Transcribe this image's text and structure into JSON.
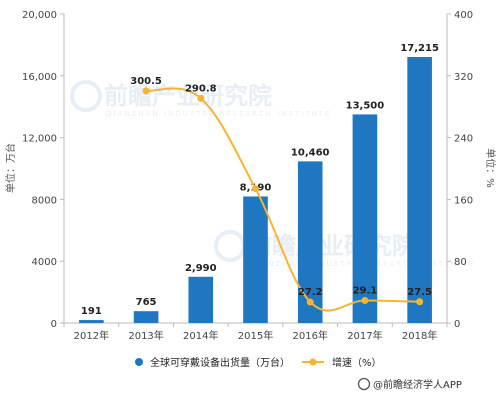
{
  "chart_data": {
    "type": "bar+line",
    "categories": [
      "2012年",
      "2013年",
      "2014年",
      "2015年",
      "2016年",
      "2017年",
      "2018年"
    ],
    "series": [
      {
        "name": "全球可穿戴设备出货量（万台）",
        "type": "bar",
        "axis": "left",
        "color": "#1f77c2",
        "values": [
          191,
          765,
          2990,
          8190,
          10460,
          13500,
          17215
        ],
        "labels": [
          "191",
          "765",
          "2,990",
          "8,190",
          "10,460",
          "13,500",
          "17,215"
        ]
      },
      {
        "name": "增速（%）",
        "type": "line",
        "axis": "right",
        "color": "#f5b533",
        "values": [
          null,
          300.5,
          290.8,
          174,
          27.2,
          29.1,
          27.5
        ],
        "labels": [
          "",
          "300.5",
          "290.8",
          "",
          "27.2",
          "29.1",
          "27.5"
        ]
      }
    ],
    "y_left": {
      "label": "单位：万台",
      "ylim": [
        0,
        20000
      ],
      "ticks": [
        0,
        4000,
        8000,
        12000,
        16000,
        20000
      ],
      "tick_labels": [
        "0",
        "4000",
        "8000",
        "12,000",
        "16,000",
        "20,000"
      ]
    },
    "y_right": {
      "label": "单位：%",
      "ylim": [
        0,
        400
      ],
      "ticks": [
        0,
        80,
        160,
        240,
        320,
        400
      ],
      "tick_labels": [
        "0",
        "80",
        "160",
        "240",
        "320",
        "400"
      ]
    },
    "grid": false,
    "legend_position": "bottom"
  },
  "watermark": {
    "text": "前瞻产业研究院",
    "sub": "QIANZHAN INDUSTRY RESEARCH INSTITUTE"
  },
  "source": {
    "text": "@前瞻经济学人APP"
  },
  "colors": {
    "bar": "#1f77c2",
    "line": "#f5b533",
    "axis": "#bbbbbb"
  }
}
